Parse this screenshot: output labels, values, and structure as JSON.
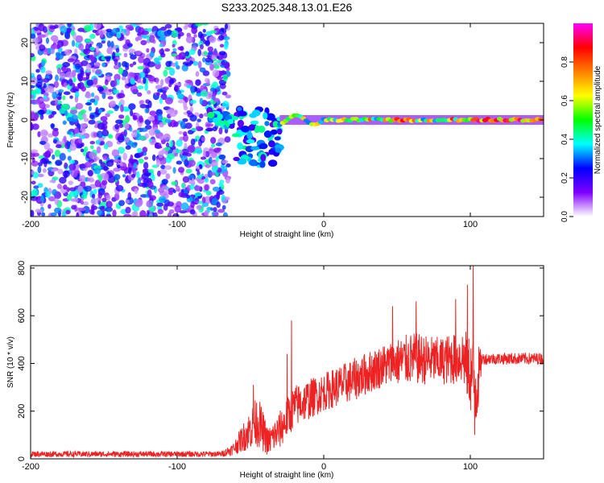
{
  "title": "S233.2025.348.13.01.E26",
  "chart_data": [
    {
      "type": "heatmap",
      "name": "spectrogram",
      "xlabel": "Height of straight line (km)",
      "ylabel": "Frequency (Hz)",
      "xlim": [
        -200,
        150
      ],
      "ylim": [
        -25,
        25
      ],
      "xticks": [
        -200,
        -100,
        0,
        100
      ],
      "yticks": [
        -20,
        -10,
        0,
        10,
        20
      ],
      "colorbar": {
        "label": "Normalized spectral amplitude",
        "range": [
          0,
          1
        ],
        "ticks": [
          0.0,
          0.2,
          0.4,
          0.6,
          0.8
        ],
        "colors": [
          "#ffffff",
          "#7f00ff",
          "#0000ff",
          "#00ffff",
          "#00ff00",
          "#ffff00",
          "#ff7f00",
          "#ff0000",
          "#ff00ff"
        ]
      },
      "noise_region": {
        "x": [
          -200,
          -75
        ],
        "amplitude": [
          0.05,
          0.45
        ]
      },
      "transition_region": {
        "x": [
          -80,
          -30
        ],
        "freq_range": [
          -12,
          3
        ]
      },
      "signal_line": {
        "x": [
          -30,
          150
        ],
        "frequency": 0,
        "amplitude_max": 0.95
      }
    },
    {
      "type": "line",
      "name": "snr",
      "xlabel": "Height of straight line (km)",
      "ylabel": "SNR (10 * v/v)",
      "xlim": [
        -200,
        150
      ],
      "ylim": [
        0,
        810
      ],
      "xticks": [
        -200,
        -100,
        0,
        100
      ],
      "yticks": [
        0,
        200,
        400,
        600,
        800
      ],
      "color": "#ee2222",
      "envelope": [
        {
          "x": -200,
          "mean": 20,
          "spread": 12
        },
        {
          "x": -70,
          "mean": 20,
          "spread": 12
        },
        {
          "x": -62,
          "mean": 40,
          "spread": 25
        },
        {
          "x": -55,
          "mean": 90,
          "spread": 60
        },
        {
          "x": -45,
          "mean": 160,
          "spread": 110
        },
        {
          "x": -38,
          "mean": 70,
          "spread": 60
        },
        {
          "x": -30,
          "mean": 120,
          "spread": 80
        },
        {
          "x": -20,
          "mean": 220,
          "spread": 90
        },
        {
          "x": 0,
          "mean": 280,
          "spread": 80
        },
        {
          "x": 20,
          "mean": 330,
          "spread": 90
        },
        {
          "x": 40,
          "mean": 390,
          "spread": 90
        },
        {
          "x": 60,
          "mean": 420,
          "spread": 110
        },
        {
          "x": 80,
          "mean": 410,
          "spread": 100
        },
        {
          "x": 95,
          "mean": 430,
          "spread": 120
        },
        {
          "x": 104,
          "mean": 300,
          "spread": 200
        },
        {
          "x": 108,
          "mean": 420,
          "spread": 25
        },
        {
          "x": 150,
          "mean": 420,
          "spread": 25
        }
      ],
      "spikes": [
        {
          "x": -48,
          "y": 310
        },
        {
          "x": -22,
          "y": 580
        },
        {
          "x": -25,
          "y": 440
        },
        {
          "x": 47,
          "y": 640
        },
        {
          "x": 63,
          "y": 660
        },
        {
          "x": 90,
          "y": 670
        },
        {
          "x": 98,
          "y": 730
        },
        {
          "x": 102,
          "y": 810
        },
        {
          "x": 103,
          "y": 100
        }
      ]
    }
  ]
}
